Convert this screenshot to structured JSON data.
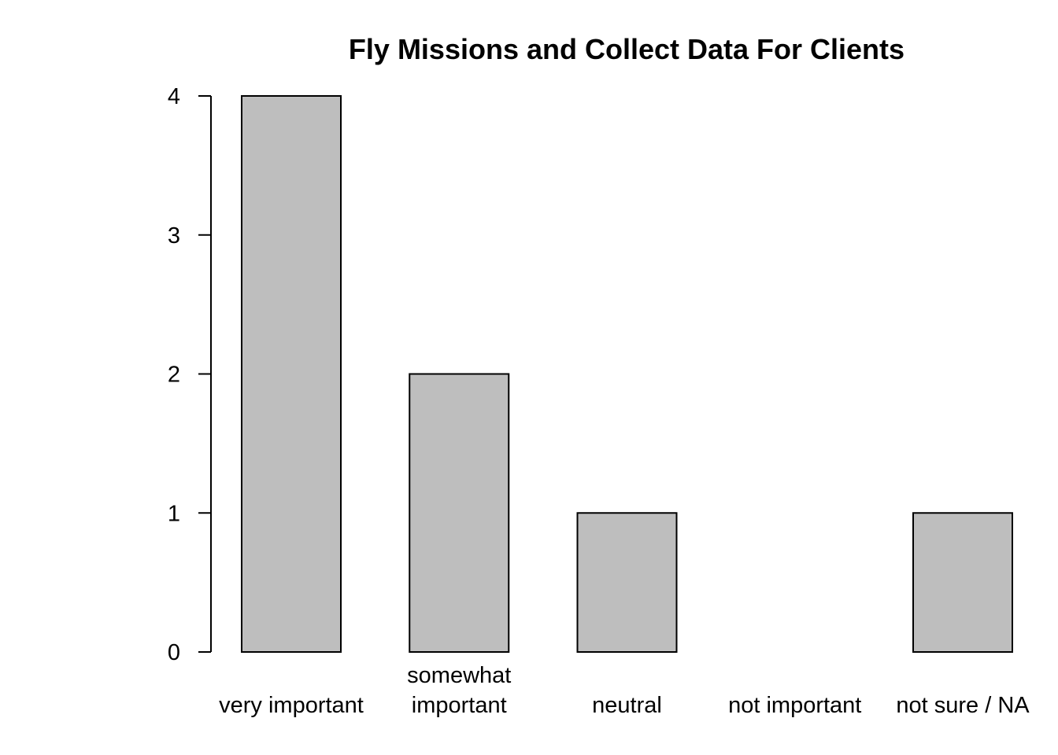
{
  "chart_data": {
    "type": "bar",
    "title": "Fly Missions and Collect Data For Clients",
    "xlabel": "",
    "ylabel": "",
    "categories": [
      "very important",
      "somewhat important",
      "neutral",
      "not important",
      "not sure / NA"
    ],
    "category_label_lines": [
      [
        "very important"
      ],
      [
        "somewhat",
        "important"
      ],
      [
        "neutral"
      ],
      [
        "not important"
      ],
      [
        "not sure / NA"
      ]
    ],
    "values": [
      4,
      2,
      1,
      0,
      1
    ],
    "yticks": [
      0,
      1,
      2,
      3,
      4
    ],
    "ylim": [
      0,
      4
    ],
    "grid": false,
    "legend": "none",
    "colors": {
      "bar_fill": "#bebebe",
      "bar_stroke": "#000000",
      "axis": "#000000",
      "text": "#000000",
      "background": "#ffffff"
    }
  }
}
